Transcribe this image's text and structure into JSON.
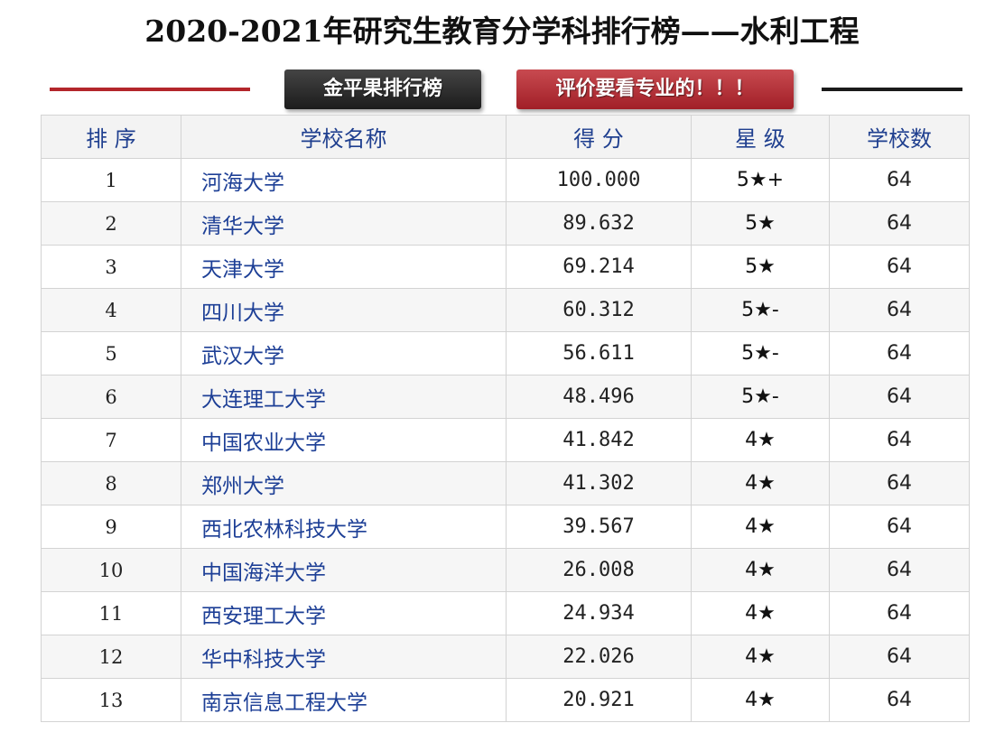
{
  "title": "2020-2021年研究生教育分学科排行榜——水利工程",
  "banner_left": "金平果排行榜",
  "banner_right": "评价要看专业的！！！",
  "colors": {
    "red_rule": "#b3262b",
    "header_text": "#1f3f8f",
    "school_link": "#1d3f96"
  },
  "table": {
    "headers": {
      "rank": "排 序",
      "school": "学校名称",
      "score": "得 分",
      "stars": "星 级",
      "count": "学校数"
    },
    "rows": [
      {
        "rank": "1",
        "school": "河海大学",
        "score": "100.000",
        "stars": "5★+",
        "count": "64"
      },
      {
        "rank": "2",
        "school": "清华大学",
        "score": "89.632",
        "stars": "5★",
        "count": "64"
      },
      {
        "rank": "3",
        "school": "天津大学",
        "score": "69.214",
        "stars": "5★",
        "count": "64"
      },
      {
        "rank": "4",
        "school": "四川大学",
        "score": "60.312",
        "stars": "5★-",
        "count": "64"
      },
      {
        "rank": "5",
        "school": "武汉大学",
        "score": "56.611",
        "stars": "5★-",
        "count": "64"
      },
      {
        "rank": "6",
        "school": "大连理工大学",
        "score": "48.496",
        "stars": "5★-",
        "count": "64"
      },
      {
        "rank": "7",
        "school": "中国农业大学",
        "score": "41.842",
        "stars": "4★",
        "count": "64"
      },
      {
        "rank": "8",
        "school": "郑州大学",
        "score": "41.302",
        "stars": "4★",
        "count": "64"
      },
      {
        "rank": "9",
        "school": "西北农林科技大学",
        "score": "39.567",
        "stars": "4★",
        "count": "64"
      },
      {
        "rank": "10",
        "school": "中国海洋大学",
        "score": "26.008",
        "stars": "4★",
        "count": "64"
      },
      {
        "rank": "11",
        "school": "西安理工大学",
        "score": "24.934",
        "stars": "4★",
        "count": "64"
      },
      {
        "rank": "12",
        "school": "华中科技大学",
        "score": "22.026",
        "stars": "4★",
        "count": "64"
      },
      {
        "rank": "13",
        "school": "南京信息工程大学",
        "score": "20.921",
        "stars": "4★",
        "count": "64"
      }
    ]
  }
}
